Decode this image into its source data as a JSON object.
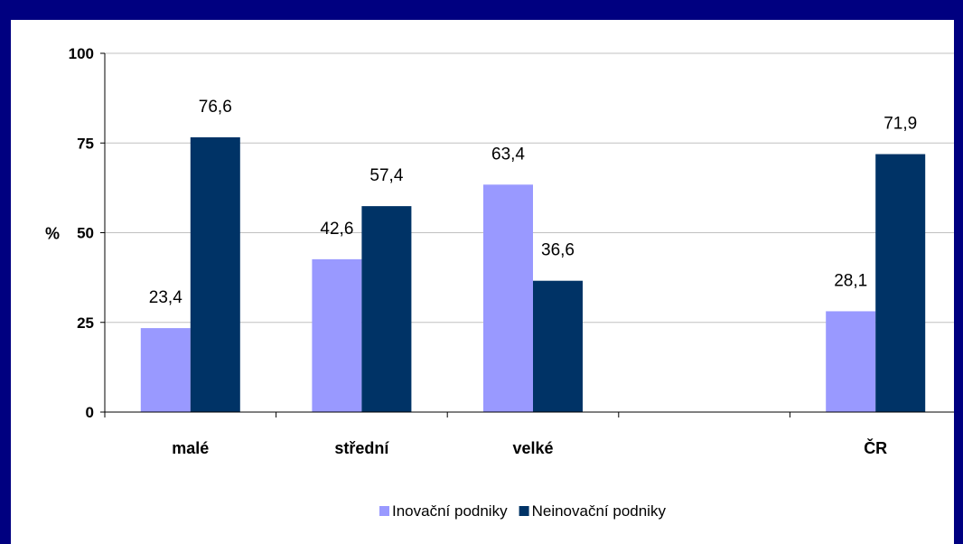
{
  "chart_data": {
    "type": "bar",
    "categories": [
      "malé",
      "střední",
      "velké",
      "",
      "ČR"
    ],
    "series": [
      {
        "name": "Inovační podniky",
        "values": [
          23.4,
          42.6,
          63.4,
          null,
          28.1
        ],
        "color": "#9999ff"
      },
      {
        "name": "Neinovační podniky",
        "values": [
          76.6,
          57.4,
          36.6,
          null,
          71.9
        ],
        "color": "#003366"
      }
    ],
    "ylabel": "%",
    "ylim": [
      0,
      100
    ],
    "yticks": [
      0,
      25,
      50,
      75,
      100
    ],
    "grid": true,
    "legend_position": "bottom"
  }
}
